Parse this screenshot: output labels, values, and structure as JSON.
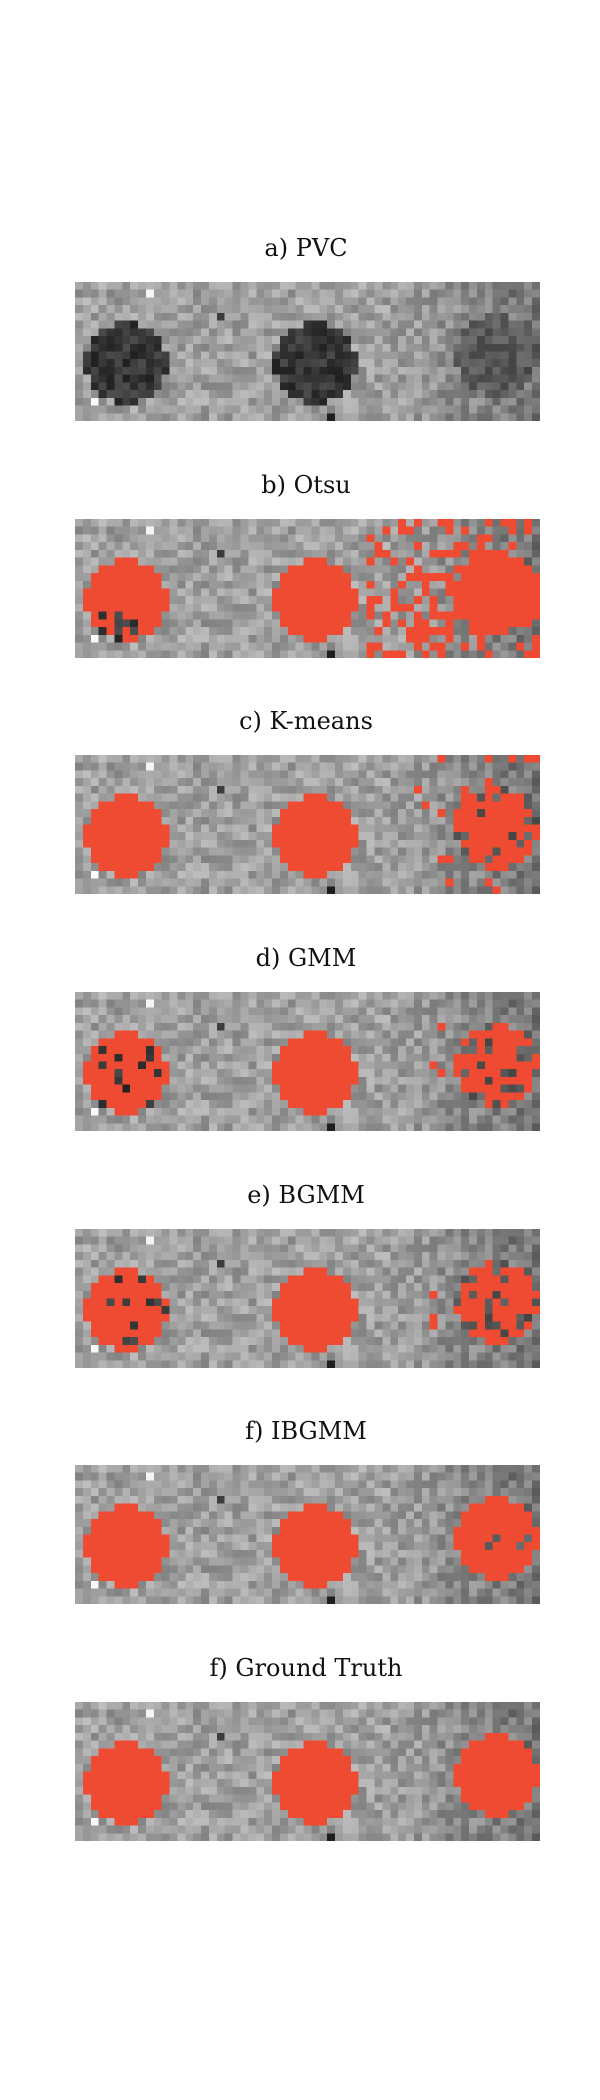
{
  "figure": {
    "panels": [
      {
        "title": "a) PVC",
        "overlay": "none"
      },
      {
        "title": "b) Otsu",
        "overlay": "otsu"
      },
      {
        "title": "c) K-means",
        "overlay": "kmeans"
      },
      {
        "title": "d) GMM",
        "overlay": "gmm"
      },
      {
        "title": "e) BGMM",
        "overlay": "bgmm"
      },
      {
        "title": "f) IBGMM",
        "overlay": "ibgmm"
      },
      {
        "title": "f) Ground Truth",
        "overlay": "truth"
      }
    ],
    "overlay_color": "#ef4b33"
  }
}
